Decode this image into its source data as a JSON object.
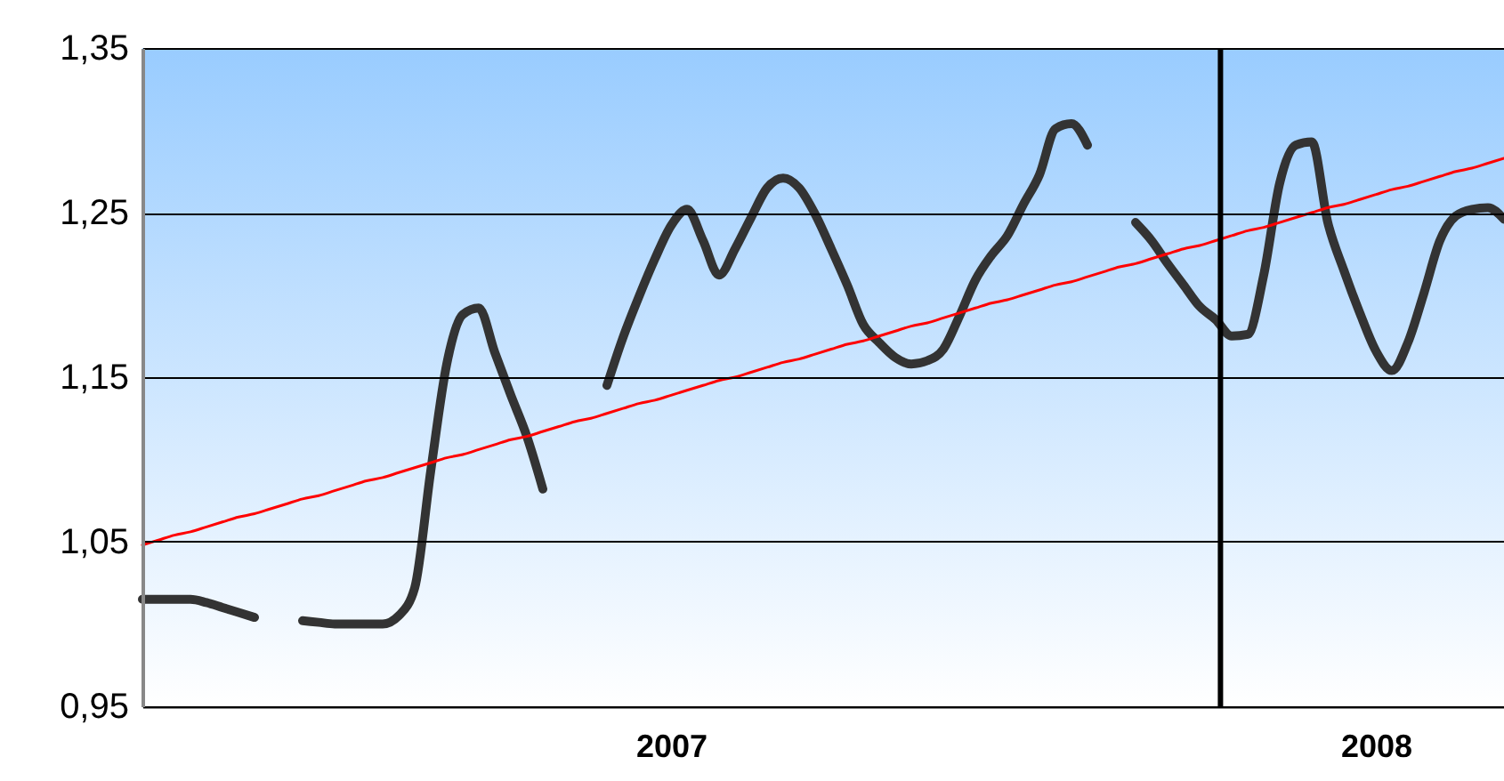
{
  "chart_data": {
    "type": "line",
    "categories": [
      null,
      null,
      null,
      null,
      null,
      null,
      null,
      null,
      null,
      null,
      null,
      null,
      null,
      null,
      null,
      null,
      null,
      null,
      null,
      null,
      null,
      null,
      null,
      null,
      null,
      null,
      null,
      null,
      null,
      null,
      null,
      null,
      null,
      "2007",
      null,
      null,
      null,
      null,
      null,
      null,
      null,
      null,
      null,
      null,
      null,
      null,
      null,
      null,
      null,
      null,
      null,
      null,
      null,
      null,
      null,
      null,
      null,
      null,
      null,
      null,
      null,
      null,
      null,
      null,
      null,
      null,
      null,
      null,
      null,
      null,
      null,
      null,
      null,
      null,
      null,
      null,
      null,
      "2008",
      null,
      null,
      null,
      null,
      null,
      null,
      null,
      null
    ],
    "series": [
      {
        "color": "#333333",
        "values": [
          1.015,
          1.015,
          1.015,
          1.015,
          1.013,
          1.01,
          1.007,
          1.004,
          null,
          null,
          1.002,
          1.001,
          1.0,
          1.0,
          1.0,
          1.0,
          1.005,
          1.022,
          1.093,
          1.158,
          1.188,
          1.192,
          1.165,
          1.139,
          1.114,
          1.082,
          null,
          null,
          null,
          1.145,
          1.174,
          1.199,
          1.222,
          1.242,
          1.252,
          1.233,
          1.212,
          1.228,
          1.247,
          1.265,
          1.271,
          1.265,
          1.249,
          1.228,
          1.206,
          1.182,
          1.171,
          1.162,
          1.158,
          1.16,
          1.167,
          1.187,
          1.209,
          1.224,
          1.236,
          1.255,
          1.273,
          1.301,
          1.304,
          1.291,
          null,
          null,
          1.244,
          1.233,
          1.219,
          1.206,
          1.193,
          1.185,
          1.175,
          1.176,
          1.212,
          1.268,
          1.291,
          1.293,
          1.244,
          1.215,
          1.189,
          1.166,
          1.154,
          1.171,
          1.201,
          1.233,
          1.248,
          1.252,
          1.253,
          1.246
        ]
      },
      {
        "type": "line",
        "color": "#ff0000",
        "values": [
          1.048,
          1.051,
          1.054,
          1.056,
          1.059,
          1.062,
          1.065,
          1.067,
          1.07,
          1.073,
          1.076,
          1.078,
          1.081,
          1.084,
          1.087,
          1.089,
          1.092,
          1.095,
          1.098,
          1.101,
          1.103,
          1.106,
          1.109,
          1.112,
          1.114,
          1.117,
          1.12,
          1.123,
          1.125,
          1.128,
          1.131,
          1.134,
          1.136,
          1.139,
          1.142,
          1.145,
          1.148,
          1.15,
          1.153,
          1.156,
          1.159,
          1.161,
          1.164,
          1.167,
          1.17,
          1.172,
          1.175,
          1.178,
          1.181,
          1.183,
          1.186,
          1.189,
          1.192,
          1.195,
          1.197,
          1.2,
          1.203,
          1.206,
          1.208,
          1.211,
          1.214,
          1.217,
          1.219,
          1.222,
          1.225,
          1.228,
          1.23,
          1.233,
          1.236,
          1.239,
          1.241,
          1.244,
          1.247,
          1.25,
          1.253,
          1.255,
          1.258,
          1.261,
          1.264,
          1.266,
          1.269,
          1.272,
          1.275,
          1.277,
          1.28,
          1.283
        ]
      }
    ],
    "ylim": [
      0.95,
      1.35
    ],
    "yticks": [
      {
        "value": 0.95,
        "label": "0,95"
      },
      {
        "value": 1.05,
        "label": "1,05"
      },
      {
        "value": 1.15,
        "label": "1,15"
      },
      {
        "value": 1.25,
        "label": "1,25"
      },
      {
        "value": 1.35,
        "label": "1,35"
      }
    ],
    "grid": "y",
    "marker": "none",
    "line_style": "solid"
  }
}
